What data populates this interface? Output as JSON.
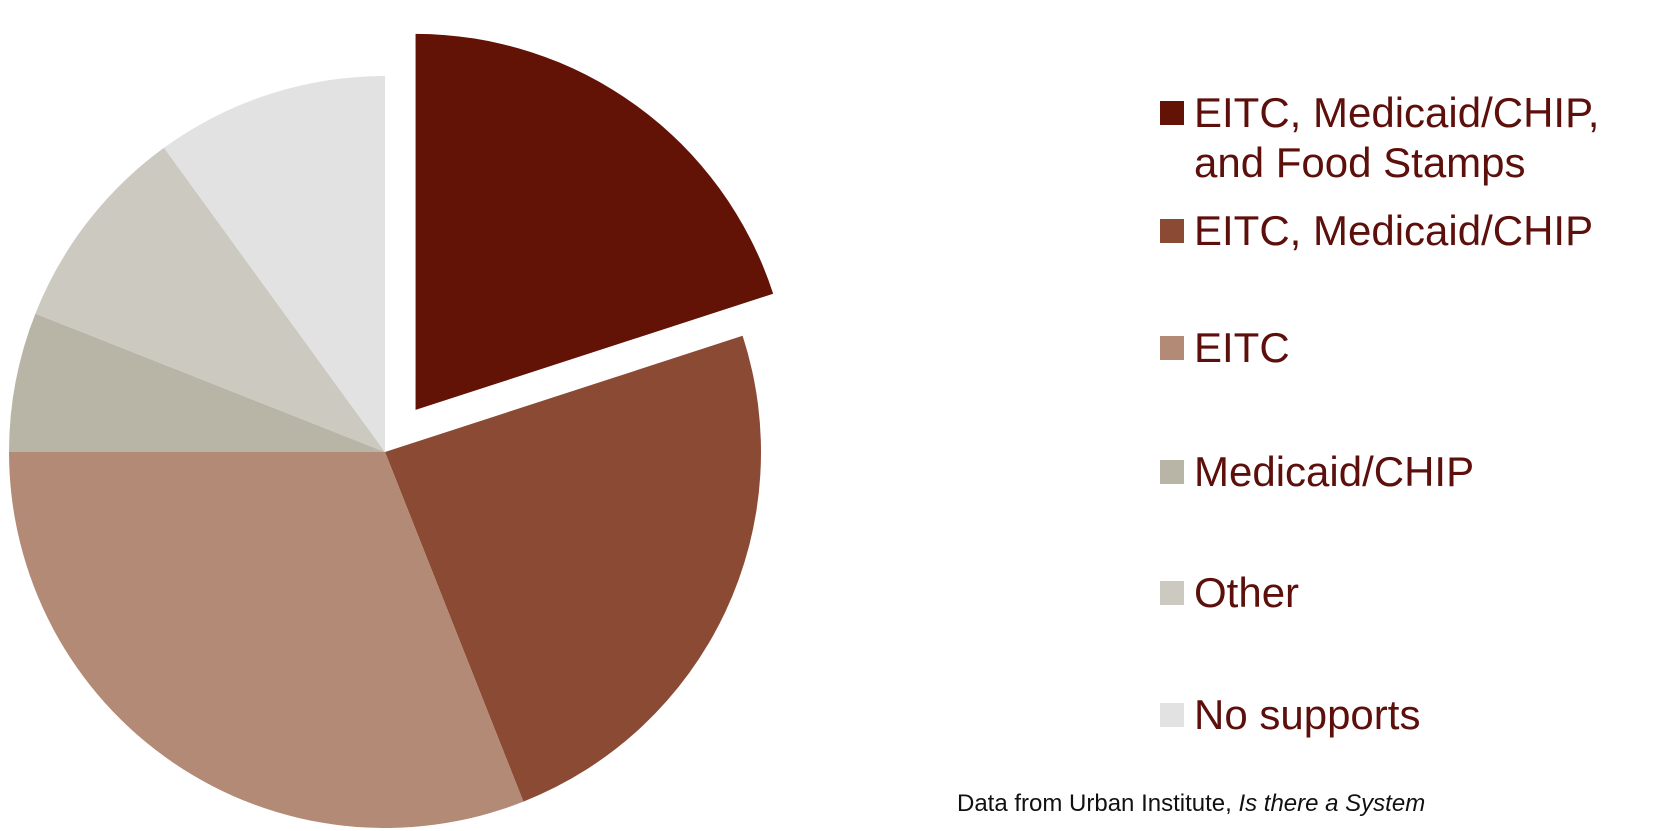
{
  "chart_data": {
    "type": "pie",
    "title": "",
    "legend_position": "right",
    "exploded": [
      "EITC, Medicaid/CHIP, and Food Stamps"
    ],
    "slices": [
      {
        "name": "EITC, Medicaid/CHIP, and Food Stamps",
        "value": 20,
        "color": "#631206"
      },
      {
        "name": "EITC, Medicaid/CHIP",
        "value": 24,
        "color": "#8b4a33"
      },
      {
        "name": "EITC",
        "value": 31,
        "color": "#b38a76"
      },
      {
        "name": "Medicaid/CHIP",
        "value": 6,
        "color": "#b9b5a6"
      },
      {
        "name": "Other",
        "value": 9,
        "color": "#cbc9c0"
      },
      {
        "name": "No supports",
        "value": 10,
        "color": "#e2e2e2"
      }
    ]
  },
  "source": {
    "prefix": "Data from Urban Institute, ",
    "italic": "Is there a System"
  }
}
